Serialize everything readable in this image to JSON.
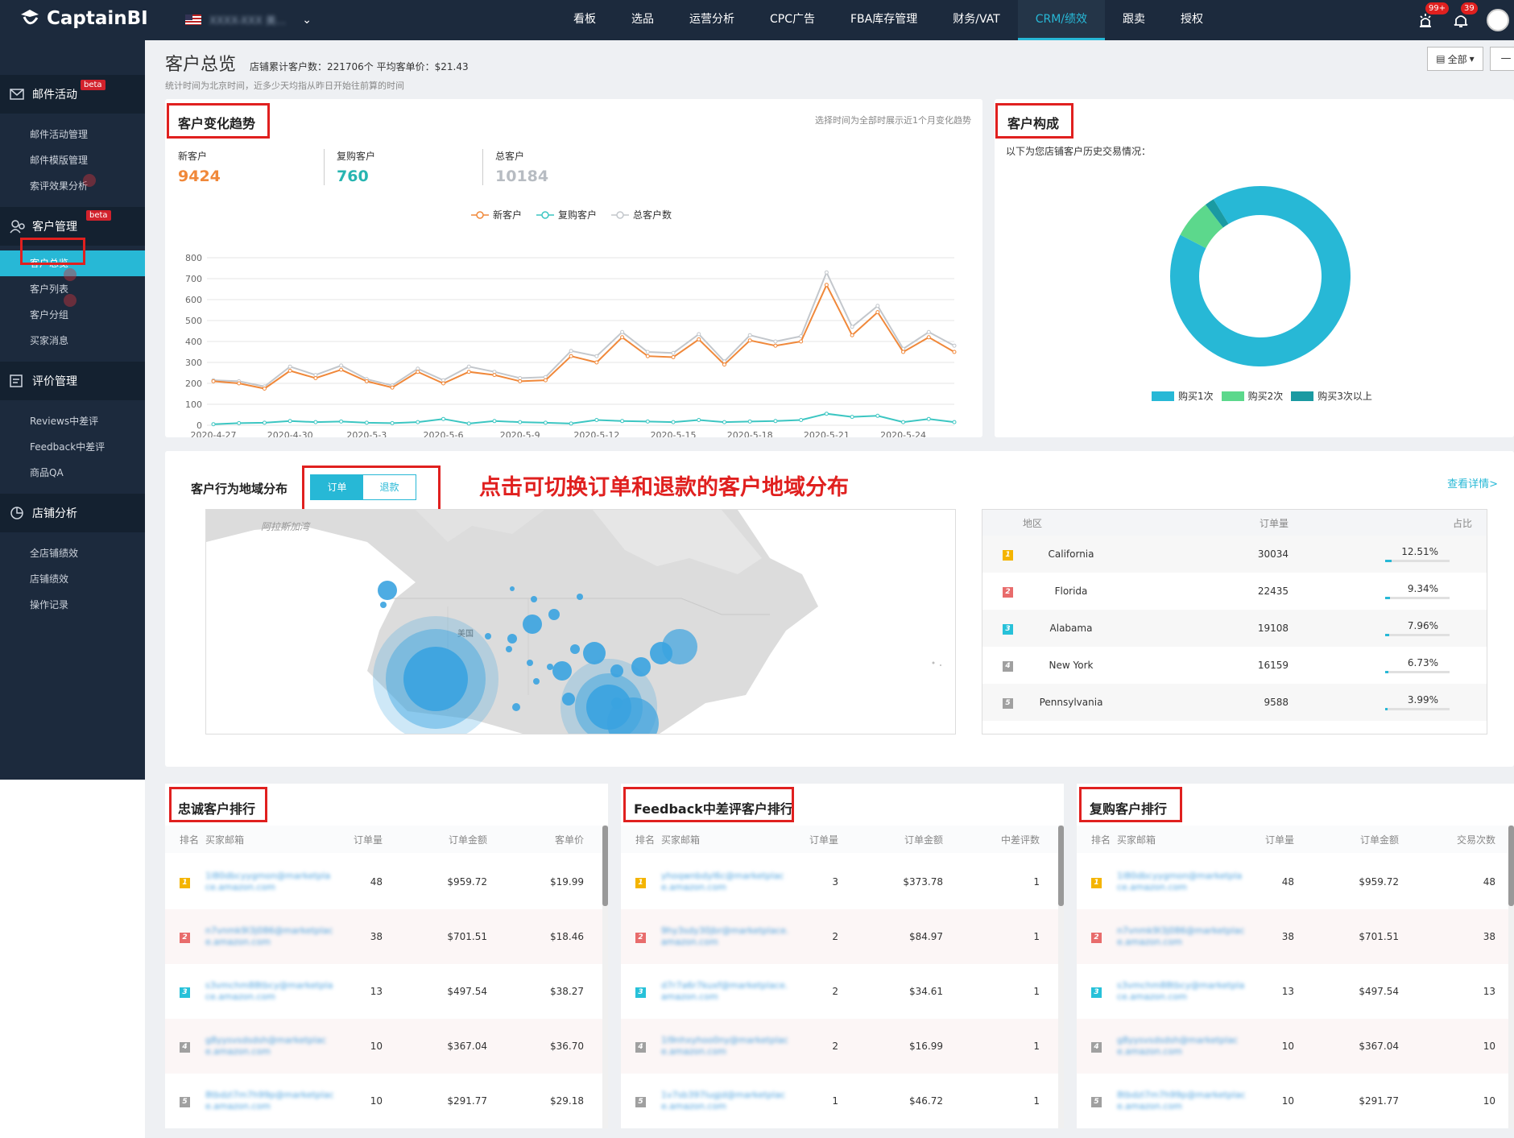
{
  "header": {
    "brand": "CaptainBI",
    "store_name": "XXXX-XXX 美...",
    "nav": [
      "看板",
      "选品",
      "运营分析",
      "CPC广告",
      "FBA库存管理",
      "财务/VAT",
      "CRM/绩效",
      "跟卖",
      "授权"
    ],
    "active_nav": "CRM/绩效",
    "badge_alerts": "99+",
    "badge_bell": "39"
  },
  "sidebar": {
    "groups": [
      {
        "title": "邮件活动",
        "beta": "beta",
        "items": [
          "邮件活动管理",
          "邮件模版管理",
          "索评效果分析"
        ]
      },
      {
        "title": "客户管理",
        "beta": "beta",
        "items": [
          "客户总览",
          "客户列表",
          "客户分组",
          "买家消息"
        ]
      },
      {
        "title": "评价管理",
        "items": [
          "Reviews中差评",
          "Feedback中差评",
          "商品QA"
        ]
      },
      {
        "title": "店铺分析",
        "items": [
          "全店铺绩效",
          "店铺绩效",
          "操作记录"
        ]
      }
    ],
    "active_item": "客户总览"
  },
  "page": {
    "title": "客户总览",
    "stats": "店铺累计客户数：221706个 平均客单价：$21.43",
    "note": "统计时间为北京时间，近多少天均指从昨日开始往前算的时间",
    "filter_label": "全部",
    "filter2_label": "—"
  },
  "trend": {
    "title": "客户变化趋势",
    "note": "选择时间为全部时展示近1个月变化趋势",
    "new_label": "新客户",
    "new_value": "9424",
    "repeat_label": "复购客户",
    "repeat_value": "760",
    "total_label": "总客户",
    "total_value": "10184",
    "legend": [
      "新客户",
      "复购客户",
      "总客户数"
    ]
  },
  "chart_data": {
    "type": "line",
    "x": [
      "2020-4-27",
      "2020-4-28",
      "2020-4-29",
      "2020-4-30",
      "2020-5-1",
      "2020-5-2",
      "2020-5-3",
      "2020-5-4",
      "2020-5-5",
      "2020-5-6",
      "2020-5-7",
      "2020-5-8",
      "2020-5-9",
      "2020-5-10",
      "2020-5-11",
      "2020-5-12",
      "2020-5-13",
      "2020-5-14",
      "2020-5-15",
      "2020-5-16",
      "2020-5-17",
      "2020-5-18",
      "2020-5-19",
      "2020-5-20",
      "2020-5-21",
      "2020-5-22",
      "2020-5-23",
      "2020-5-24",
      "2020-5-25",
      "2020-5-26"
    ],
    "x_tick_labels": [
      "2020-4-27",
      "2020-4-30",
      "2020-5-3",
      "2020-5-6",
      "2020-5-9",
      "2020-5-12",
      "2020-5-15",
      "2020-5-18",
      "2020-5-21",
      "2020-5-24"
    ],
    "ylim": [
      0,
      800
    ],
    "yticks": [
      0,
      100,
      200,
      300,
      400,
      500,
      600,
      700,
      800
    ],
    "series": [
      {
        "name": "新客户",
        "color": "#f0883a",
        "values": [
          210,
          200,
          175,
          260,
          225,
          265,
          210,
          180,
          255,
          200,
          255,
          240,
          210,
          215,
          330,
          300,
          420,
          330,
          325,
          410,
          290,
          405,
          380,
          400,
          670,
          430,
          540,
          350,
          420,
          350
        ]
      },
      {
        "name": "复购客户",
        "color": "#3cc6c2",
        "values": [
          5,
          10,
          12,
          20,
          15,
          18,
          12,
          10,
          15,
          30,
          8,
          20,
          15,
          12,
          8,
          25,
          20,
          18,
          15,
          25,
          15,
          18,
          20,
          25,
          55,
          40,
          45,
          15,
          30,
          15
        ]
      },
      {
        "name": "总客户数",
        "color": "#c3c7cc",
        "values": [
          215,
          210,
          185,
          280,
          240,
          285,
          220,
          190,
          270,
          215,
          280,
          255,
          225,
          230,
          355,
          330,
          445,
          350,
          345,
          435,
          305,
          430,
          400,
          425,
          730,
          470,
          570,
          365,
          445,
          380
        ]
      }
    ]
  },
  "composition": {
    "title": "客户构成",
    "note": "以下为您店铺客户历史交易情况：",
    "slices": [
      {
        "name": "购买1次",
        "value": 91.3,
        "color": "#27b8d6"
      },
      {
        "name": "购买2次",
        "value": 7.0,
        "color": "#5cd88c"
      },
      {
        "name": "购买3次以上",
        "value": 1.7,
        "color": "#1a9aa2"
      }
    ]
  },
  "geo": {
    "title": "客户行为地域分布",
    "toggle_on": "订单",
    "toggle_off": "退款",
    "tip": "点击可切换订单和退款的客户地域分布",
    "view_more": "查看详情>",
    "map_label_alaska": "阿拉斯加湾",
    "map_label_us": "美国",
    "table_headers": [
      "地区",
      "订单量",
      "占比"
    ],
    "rows": [
      {
        "rank": "1",
        "region": "California",
        "orders": "30034",
        "pct": "12.51%",
        "pct_value": 12.51
      },
      {
        "rank": "2",
        "region": "Florida",
        "orders": "22435",
        "pct": "9.34%",
        "pct_value": 9.34
      },
      {
        "rank": "3",
        "region": "Alabama",
        "orders": "19108",
        "pct": "7.96%",
        "pct_value": 7.96
      },
      {
        "rank": "4",
        "region": "New York",
        "orders": "16159",
        "pct": "6.73%",
        "pct_value": 6.73
      },
      {
        "rank": "5",
        "region": "Pennsylvania",
        "orders": "9588",
        "pct": "3.99%",
        "pct_value": 3.99
      }
    ]
  },
  "rankings": [
    {
      "title": "忠诚客户排行",
      "headers": [
        "排名",
        "买家邮箱",
        "订单量",
        "订单金额",
        "客单价"
      ],
      "rows": [
        {
          "rank": "1",
          "email": "1l80dbcyygmon@marketplace.amazon.com",
          "c1": "48",
          "c2": "$959.72",
          "c3": "$19.99"
        },
        {
          "rank": "2",
          "email": "n7vnmk9l3j086@marketplace.amazon.com",
          "c1": "38",
          "c2": "$701.51",
          "c3": "$18.46"
        },
        {
          "rank": "3",
          "email": "s3vmchm88tbcy@marketplace.amazon.com",
          "c1": "13",
          "c2": "$497.54",
          "c3": "$38.27"
        },
        {
          "rank": "4",
          "email": "g8yysvsdsdsh@marketplace.amazon.com",
          "c1": "10",
          "c2": "$367.04",
          "c3": "$36.70"
        },
        {
          "rank": "5",
          "email": "8tbdzl7m7h99p@marketplace.amazon.com",
          "c1": "10",
          "c2": "$291.77",
          "c3": "$29.18"
        }
      ]
    },
    {
      "title": "Feedback中差评客户排行",
      "headers": [
        "排名",
        "买家邮箱",
        "订单量",
        "订单金额",
        "中差评数"
      ],
      "rows": [
        {
          "rank": "1",
          "email": "yhoqwnbdyl6c@marketplace.amazon.com",
          "c1": "3",
          "c2": "$373.78",
          "c3": "1"
        },
        {
          "rank": "2",
          "email": "9hy3sdy30jbr@marketplace.amazon.com",
          "c1": "2",
          "c2": "$84.97",
          "c3": "1"
        },
        {
          "rank": "3",
          "email": "d7r7a6r7kuxf@marketplace.amazon.com",
          "c1": "2",
          "c2": "$34.61",
          "c3": "1"
        },
        {
          "rank": "4",
          "email": "1l9nhxyhoo0ny@marketplace.amazon.com",
          "c1": "2",
          "c2": "$16.99",
          "c3": "1"
        },
        {
          "rank": "5",
          "email": "1v7sb397lugjd@marketplace.amazon.com",
          "c1": "1",
          "c2": "$46.72",
          "c3": "1"
        }
      ]
    },
    {
      "title": "复购客户排行",
      "headers": [
        "排名",
        "买家邮箱",
        "订单量",
        "订单金额",
        "交易次数"
      ],
      "rows": [
        {
          "rank": "1",
          "email": "1l80dbcyygmon@marketplace.amazon.com",
          "c1": "48",
          "c2": "$959.72",
          "c3": "48"
        },
        {
          "rank": "2",
          "email": "n7vnmk9l3j086@marketplace.amazon.com",
          "c1": "38",
          "c2": "$701.51",
          "c3": "38"
        },
        {
          "rank": "3",
          "email": "s3vmchm88tbcy@marketplace.amazon.com",
          "c1": "13",
          "c2": "$497.54",
          "c3": "13"
        },
        {
          "rank": "4",
          "email": "g8yysvsdsdsh@marketplace.amazon.com",
          "c1": "10",
          "c2": "$367.04",
          "c3": "10"
        },
        {
          "rank": "5",
          "email": "8tbdzl7m7h99p@marketplace.amazon.com",
          "c1": "10",
          "c2": "$291.77",
          "c3": "10"
        }
      ]
    }
  ]
}
